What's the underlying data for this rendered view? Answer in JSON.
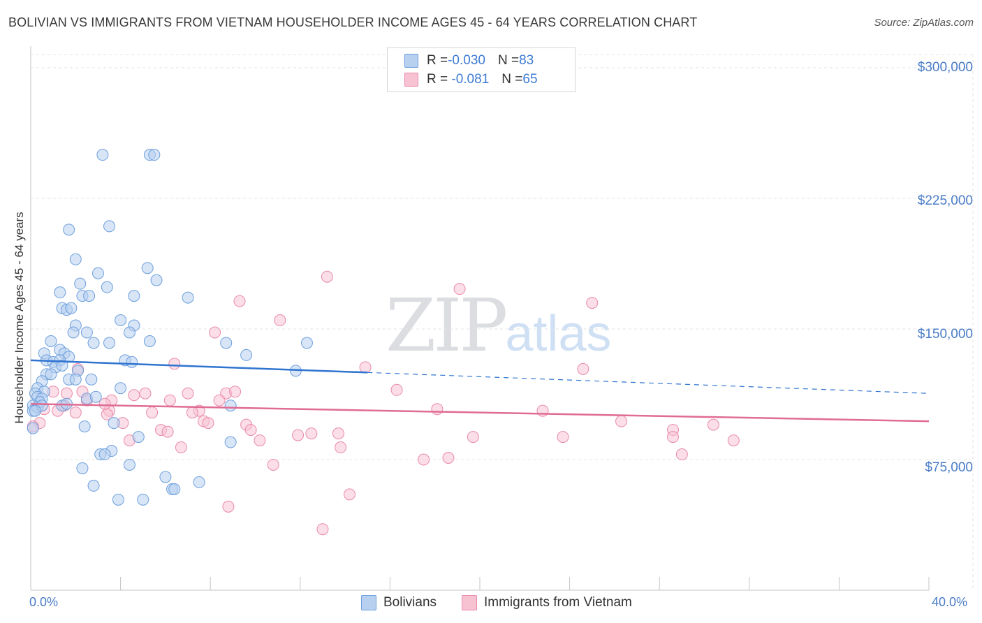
{
  "title": "BOLIVIAN VS IMMIGRANTS FROM VIETNAM HOUSEHOLDER INCOME AGES 45 - 64 YEARS CORRELATION CHART",
  "source": "Source: ZipAtlas.com",
  "watermark": {
    "zip": "ZIP",
    "atlas": "atlas"
  },
  "stats_box": {
    "rows": [
      {
        "r_label": "R = ",
        "r_value": "-0.030",
        "n_label": "N = ",
        "n_value": "83"
      },
      {
        "r_label": "R = ",
        "r_value": " -0.081",
        "n_label": "N = ",
        "n_value": "65"
      }
    ]
  },
  "legend": {
    "items": [
      "Bolivians",
      "Immigrants from Vietnam"
    ]
  },
  "colors": {
    "blue_fill": "#b7d0f0",
    "blue_stroke": "#6d9fdc",
    "blue_line": "#2f74d0",
    "pink_fill": "#f7c3d3",
    "pink_stroke": "#e98aaa",
    "pink_line": "#e06b93",
    "grid": "#e3e3e3",
    "tick_text": "#4a7cc7"
  },
  "chart_data": {
    "type": "scatter",
    "title": "BOLIVIAN VS IMMIGRANTS FROM VIETNAM HOUSEHOLDER INCOME AGES 45 - 64 YEARS CORRELATION CHART",
    "xlabel": "",
    "ylabel": "Householder Income Ages 45 - 64 years",
    "xlim": [
      0,
      40
    ],
    "ylim": [
      0,
      300000
    ],
    "x_tick_labels": [
      "0.0%",
      "40.0%"
    ],
    "y_ticks": [
      75000,
      150000,
      225000,
      300000
    ],
    "y_tick_labels": [
      "$75,000",
      "$150,000",
      "$225,000",
      "$300,000"
    ],
    "series": [
      {
        "name": "Bolivians",
        "R": -0.03,
        "N": 83,
        "trend": {
          "x_start": 0,
          "y_start": 132000,
          "x_solid_end": 15,
          "y_solid_end": 125000,
          "x_end": 40,
          "y_end": 113000
        },
        "points": [
          [
            3.2,
            250000
          ],
          [
            5.3,
            250000
          ],
          [
            5.5,
            250000
          ],
          [
            1.7,
            207000
          ],
          [
            3.5,
            209000
          ],
          [
            2.0,
            190000
          ],
          [
            3.0,
            182000
          ],
          [
            2.2,
            176000
          ],
          [
            3.4,
            174000
          ],
          [
            5.2,
            185000
          ],
          [
            5.6,
            178000
          ],
          [
            1.3,
            171000
          ],
          [
            2.3,
            169000
          ],
          [
            2.6,
            169000
          ],
          [
            4.6,
            169000
          ],
          [
            7.0,
            168000
          ],
          [
            1.4,
            162000
          ],
          [
            1.6,
            161000
          ],
          [
            1.8,
            162000
          ],
          [
            4.0,
            155000
          ],
          [
            4.6,
            152000
          ],
          [
            2.0,
            152000
          ],
          [
            1.9,
            148000
          ],
          [
            2.5,
            148000
          ],
          [
            4.4,
            148000
          ],
          [
            0.9,
            143000
          ],
          [
            2.8,
            142000
          ],
          [
            3.5,
            142000
          ],
          [
            5.3,
            143000
          ],
          [
            8.7,
            142000
          ],
          [
            12.3,
            142000
          ],
          [
            0.6,
            136000
          ],
          [
            1.3,
            138000
          ],
          [
            1.5,
            136000
          ],
          [
            1.7,
            134000
          ],
          [
            9.6,
            135000
          ],
          [
            0.7,
            132000
          ],
          [
            1.0,
            131000
          ],
          [
            1.3,
            132000
          ],
          [
            4.2,
            132000
          ],
          [
            4.5,
            131000
          ],
          [
            1.1,
            128000
          ],
          [
            1.4,
            129000
          ],
          [
            2.1,
            126000
          ],
          [
            0.7,
            124000
          ],
          [
            0.9,
            124000
          ],
          [
            11.8,
            126000
          ],
          [
            0.5,
            120000
          ],
          [
            1.7,
            121000
          ],
          [
            2.0,
            121000
          ],
          [
            2.7,
            121000
          ],
          [
            0.3,
            116000
          ],
          [
            0.6,
            114000
          ],
          [
            4.0,
            116000
          ],
          [
            0.2,
            113000
          ],
          [
            0.3,
            111000
          ],
          [
            0.5,
            110000
          ],
          [
            0.4,
            108000
          ],
          [
            2.5,
            110000
          ],
          [
            2.9,
            111000
          ],
          [
            0.1,
            106000
          ],
          [
            0.3,
            105000
          ],
          [
            0.5,
            106000
          ],
          [
            1.4,
            106000
          ],
          [
            1.6,
            107000
          ],
          [
            8.9,
            106000
          ],
          [
            0.1,
            103000
          ],
          [
            0.2,
            103000
          ],
          [
            0.1,
            93000
          ],
          [
            2.4,
            94000
          ],
          [
            3.7,
            96000
          ],
          [
            4.8,
            88000
          ],
          [
            8.9,
            85000
          ],
          [
            3.6,
            80000
          ],
          [
            3.1,
            78000
          ],
          [
            3.3,
            78000
          ],
          [
            4.4,
            72000
          ],
          [
            2.3,
            70000
          ],
          [
            6.0,
            65000
          ],
          [
            7.5,
            62000
          ],
          [
            2.8,
            60000
          ],
          [
            6.3,
            58000
          ],
          [
            6.4,
            58000
          ],
          [
            3.9,
            52000
          ],
          [
            5.0,
            52000
          ]
        ]
      },
      {
        "name": "Immigrants from Vietnam",
        "R": -0.081,
        "N": 65,
        "trend": {
          "x_start": 0,
          "y_start": 107000,
          "x_end": 40,
          "y_end": 97000
        },
        "points": [
          [
            13.2,
            180000
          ],
          [
            19.1,
            173000
          ],
          [
            9.3,
            166000
          ],
          [
            25.0,
            165000
          ],
          [
            11.1,
            155000
          ],
          [
            8.2,
            148000
          ],
          [
            6.4,
            130000
          ],
          [
            14.9,
            128000
          ],
          [
            24.6,
            127000
          ],
          [
            2.1,
            127000
          ],
          [
            16.3,
            115000
          ],
          [
            1.6,
            113000
          ],
          [
            1.0,
            114000
          ],
          [
            2.3,
            114000
          ],
          [
            5.1,
            113000
          ],
          [
            7.0,
            113000
          ],
          [
            8.7,
            113000
          ],
          [
            9.1,
            114000
          ],
          [
            4.6,
            112000
          ],
          [
            2.5,
            109000
          ],
          [
            3.6,
            109000
          ],
          [
            6.2,
            109000
          ],
          [
            8.4,
            109000
          ],
          [
            18.1,
            104000
          ],
          [
            22.8,
            103000
          ],
          [
            0.6,
            104000
          ],
          [
            1.2,
            103000
          ],
          [
            2.0,
            102000
          ],
          [
            3.5,
            103000
          ],
          [
            3.4,
            101000
          ],
          [
            5.4,
            102000
          ],
          [
            7.5,
            103000
          ],
          [
            7.2,
            102000
          ],
          [
            3.3,
            107000
          ],
          [
            1.5,
            106000
          ],
          [
            0.4,
            96000
          ],
          [
            0.1,
            94000
          ],
          [
            4.1,
            96000
          ],
          [
            7.7,
            97000
          ],
          [
            7.9,
            96000
          ],
          [
            9.6,
            95000
          ],
          [
            9.8,
            92000
          ],
          [
            5.8,
            92000
          ],
          [
            6.1,
            91000
          ],
          [
            11.9,
            89000
          ],
          [
            12.5,
            90000
          ],
          [
            13.7,
            90000
          ],
          [
            26.3,
            97000
          ],
          [
            28.6,
            92000
          ],
          [
            30.4,
            95000
          ],
          [
            19.7,
            88000
          ],
          [
            23.7,
            88000
          ],
          [
            10.2,
            86000
          ],
          [
            4.4,
            86000
          ],
          [
            28.6,
            88000
          ],
          [
            31.3,
            86000
          ],
          [
            13.8,
            82000
          ],
          [
            6.7,
            82000
          ],
          [
            29.0,
            78000
          ],
          [
            17.5,
            75000
          ],
          [
            18.6,
            76000
          ],
          [
            10.8,
            72000
          ],
          [
            14.2,
            55000
          ],
          [
            8.8,
            48000
          ],
          [
            13.0,
            35000
          ]
        ]
      }
    ]
  }
}
